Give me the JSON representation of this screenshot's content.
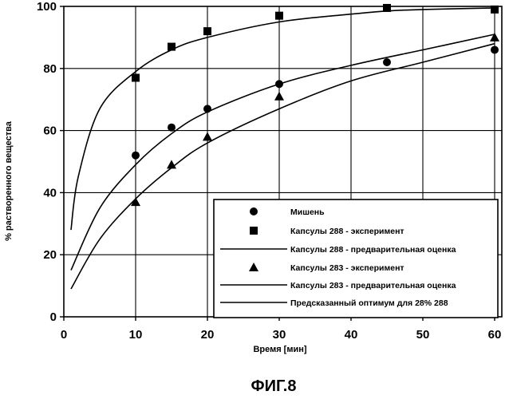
{
  "chart_data": {
    "type": "scatter",
    "xlabel": "Время [мин]",
    "ylabel": "% растворенного вещества",
    "xlim": [
      0,
      61
    ],
    "ylim": [
      0,
      100
    ],
    "xticks": [
      0,
      10,
      20,
      30,
      40,
      50,
      60
    ],
    "yticks": [
      0,
      20,
      40,
      60,
      80,
      100
    ],
    "grid": true,
    "legend_position": "bottom-right",
    "series": [
      {
        "name": "Мишень",
        "kind": "points",
        "marker": "circle",
        "x": [
          10,
          15,
          20,
          30,
          45,
          60
        ],
        "y": [
          52,
          61,
          67,
          75,
          82,
          86
        ]
      },
      {
        "name": "Капсулы 288 - эксперимент",
        "kind": "points",
        "marker": "square",
        "x": [
          10,
          15,
          20,
          30,
          45,
          60
        ],
        "y": [
          77,
          87,
          92,
          97,
          99.5,
          99
        ]
      },
      {
        "name": "Капсулы 288 - предварительная оценка",
        "kind": "line",
        "x": [
          1,
          2,
          5,
          10,
          15,
          20,
          30,
          40,
          45,
          50,
          60
        ],
        "y": [
          28,
          45,
          67,
          79,
          86,
          90,
          95,
          97.5,
          98.5,
          99,
          99.5
        ]
      },
      {
        "name": "Капсулы 283 - эксперимент",
        "kind": "points",
        "marker": "triangle",
        "x": [
          10,
          15,
          20,
          30,
          60
        ],
        "y": [
          37,
          49,
          58,
          71,
          90
        ]
      },
      {
        "name": "Капсулы 283 - предварительная оценка",
        "kind": "line",
        "x": [
          1,
          5,
          10,
          15,
          20,
          30,
          40,
          50,
          60
        ],
        "y": [
          15,
          35,
          49,
          59,
          66,
          75,
          81,
          86,
          91
        ]
      },
      {
        "name": "Предсказанный оптимум для 28% 288",
        "kind": "line",
        "x": [
          1,
          5,
          10,
          15,
          20,
          30,
          40,
          50,
          60
        ],
        "y": [
          9,
          25,
          38,
          48,
          56,
          67,
          76,
          82,
          88
        ]
      }
    ]
  },
  "caption": "ФИГ.8"
}
